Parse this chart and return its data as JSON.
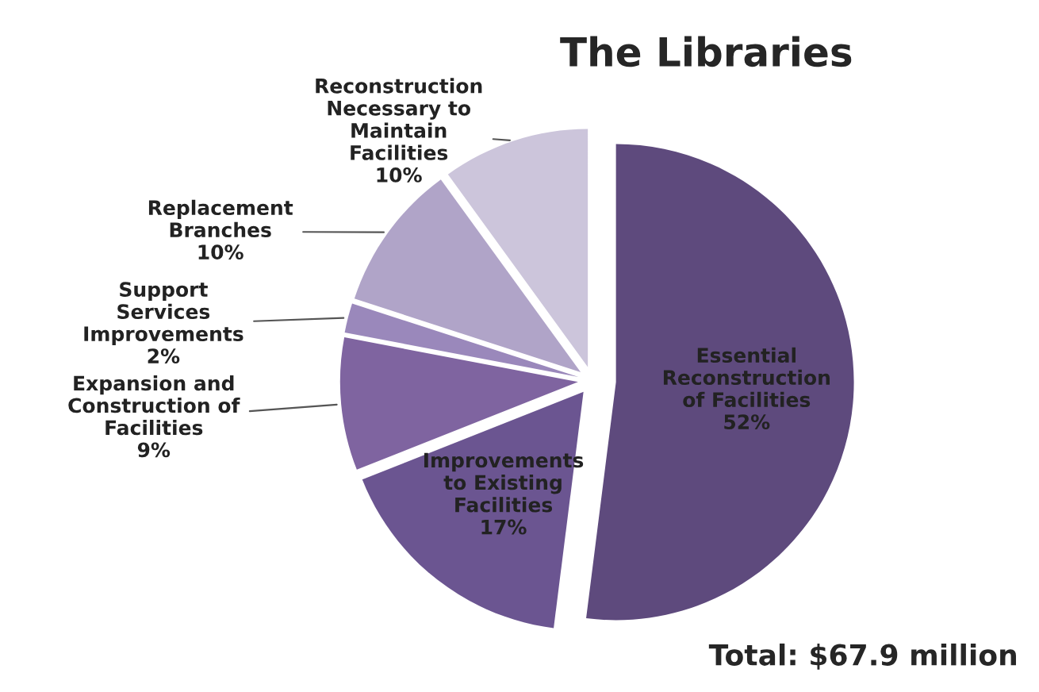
{
  "chart_data": {
    "type": "pie",
    "title": "The Libraries",
    "categories": [
      "Essential\nReconstruction\nof Facilities",
      "Improvements\nto Existing\nFacilities",
      "Expansion and\nConstruction of\nFacilities",
      "Support\nServices\nImprovements",
      "Replacement\nBranches",
      "Reconstruction\nNecessary to\nMaintain\nFacilities"
    ],
    "values": [
      52,
      17,
      9,
      2,
      10,
      10
    ],
    "value_labels": [
      "52%",
      "17%",
      "9%",
      "2%",
      "10%",
      "10%"
    ],
    "colors": [
      "#5e4a7d",
      "#6b5591",
      "#7f64a0",
      "#9a88bb",
      "#b0a4c8",
      "#ccc5db"
    ],
    "annotations": [
      "Total: $67.9 million"
    ],
    "legend": false
  }
}
